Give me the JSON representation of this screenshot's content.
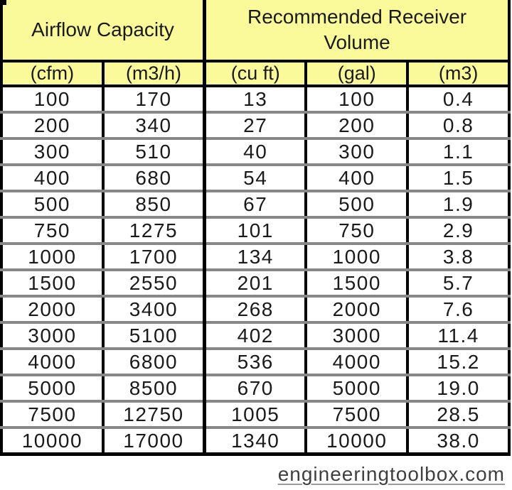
{
  "chart_data": {
    "type": "table",
    "title": "",
    "column_groups": [
      {
        "label": "Airflow Capacity",
        "colspan": 2
      },
      {
        "label": "Recommended Receiver Volume",
        "colspan": 3
      }
    ],
    "columns": [
      "(cfm)",
      "(m3/h)",
      "(cu ft)",
      "(gal)",
      "(m3)"
    ],
    "rows": [
      [
        "100",
        "170",
        "13",
        "100",
        "0.4"
      ],
      [
        "200",
        "340",
        "27",
        "200",
        "0.8"
      ],
      [
        "300",
        "510",
        "40",
        "300",
        "1.1"
      ],
      [
        "400",
        "680",
        "54",
        "400",
        "1.5"
      ],
      [
        "500",
        "850",
        "67",
        "500",
        "1.9"
      ],
      [
        "750",
        "1275",
        "101",
        "750",
        "2.9"
      ],
      [
        "1000",
        "1700",
        "134",
        "1000",
        "3.8"
      ],
      [
        "1500",
        "2550",
        "201",
        "1500",
        "5.7"
      ],
      [
        "2000",
        "3400",
        "268",
        "2000",
        "7.6"
      ],
      [
        "3000",
        "5100",
        "402",
        "3000",
        "11.4"
      ],
      [
        "4000",
        "6800",
        "536",
        "4000",
        "15.2"
      ],
      [
        "5000",
        "8500",
        "670",
        "5000",
        "19.0"
      ],
      [
        "7500",
        "12750",
        "1005",
        "7500",
        "28.5"
      ],
      [
        "10000",
        "17000",
        "1340",
        "10000",
        "38.0"
      ]
    ]
  },
  "footer": {
    "credit": "engineeringtoolbox.com"
  },
  "colors": {
    "header_bg": "#FAFA9B",
    "grid_black": "#000000",
    "row_separator": "#878787",
    "text": "#1A1A1A",
    "footer_text": "#3F3F3F"
  }
}
